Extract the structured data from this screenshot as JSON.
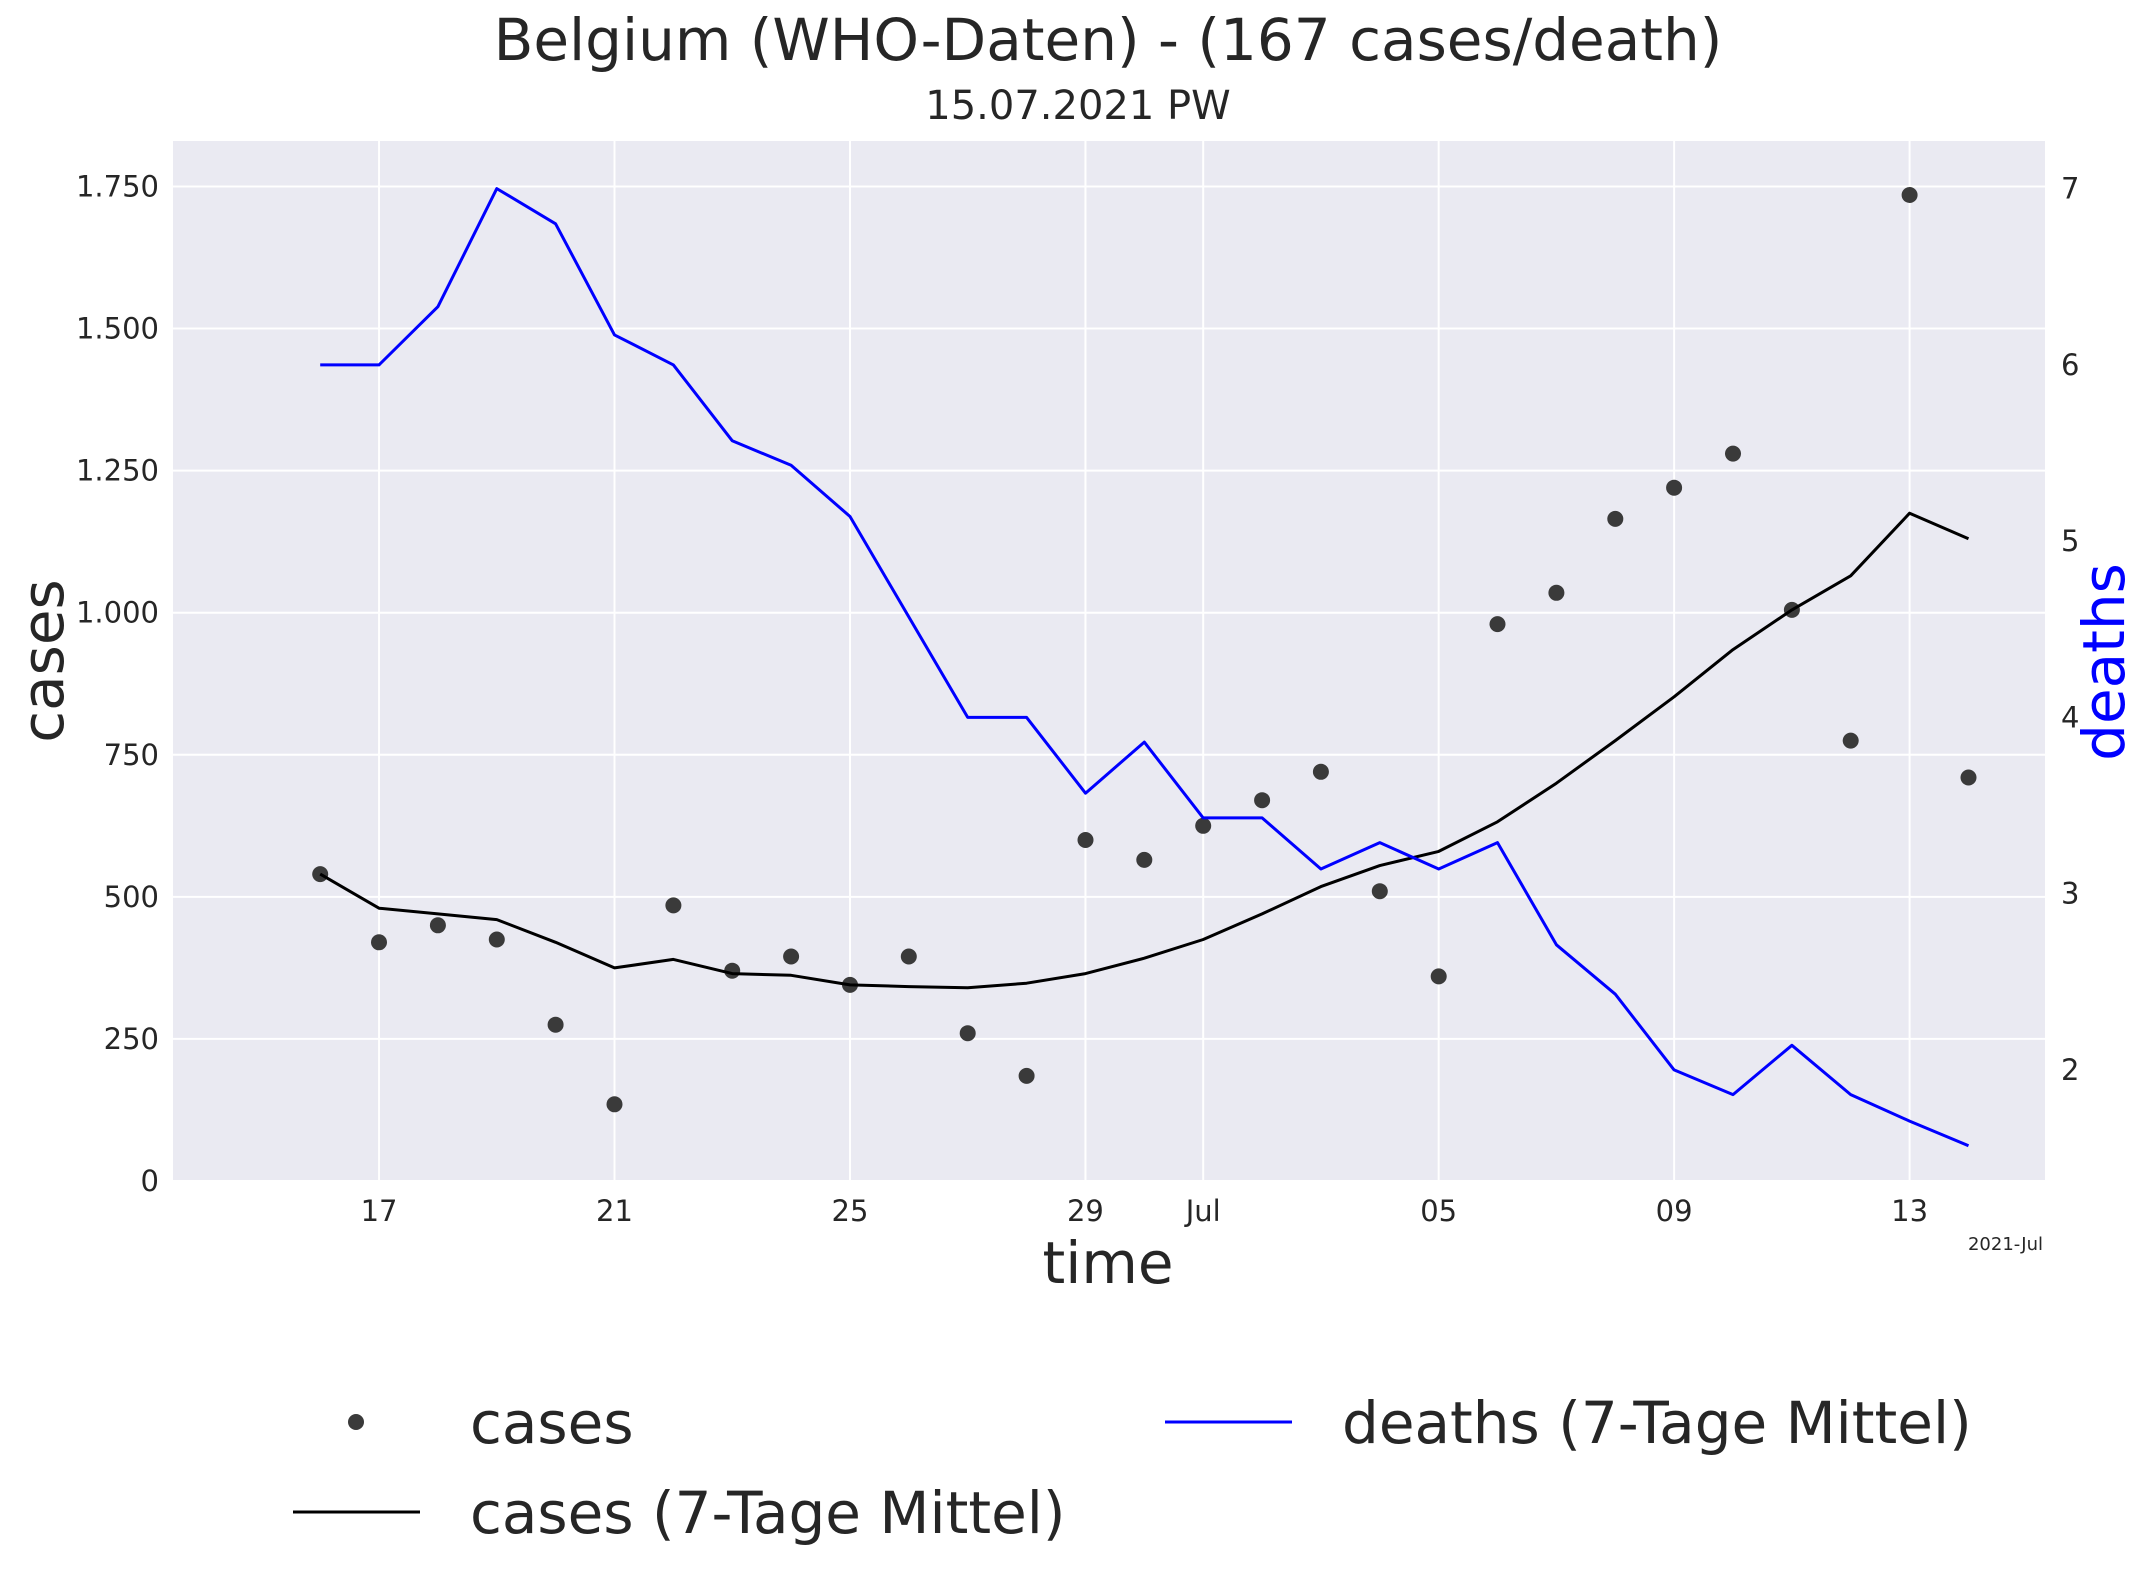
{
  "chart_data": {
    "type": "line",
    "title": "Belgium (WHO-Daten) - (167 cases/death)",
    "subtitle": "15.07.2021 PW",
    "xlabel": "time",
    "ylabel": "cases",
    "ylabel_right": "deaths",
    "x_offset_label": "2021-Jul",
    "x": [
      "2021-06-16",
      "2021-06-17",
      "2021-06-18",
      "2021-06-19",
      "2021-06-20",
      "2021-06-21",
      "2021-06-22",
      "2021-06-23",
      "2021-06-24",
      "2021-06-25",
      "2021-06-26",
      "2021-06-27",
      "2021-06-28",
      "2021-06-29",
      "2021-06-30",
      "2021-07-01",
      "2021-07-02",
      "2021-07-03",
      "2021-07-04",
      "2021-07-05",
      "2021-07-06",
      "2021-07-07",
      "2021-07-08",
      "2021-07-09",
      "2021-07-10",
      "2021-07-11",
      "2021-07-12",
      "2021-07-13",
      "2021-07-14"
    ],
    "xlim": [
      "2021-06-13.5",
      "2021-07-15.3"
    ],
    "x_ticks": [
      {
        "date": "2021-06-17",
        "label": "17"
      },
      {
        "date": "2021-06-21",
        "label": "21"
      },
      {
        "date": "2021-06-25",
        "label": "25"
      },
      {
        "date": "2021-06-29",
        "label": "29"
      },
      {
        "date": "2021-07-01",
        "label": "Jul"
      },
      {
        "date": "2021-07-05",
        "label": "05"
      },
      {
        "date": "2021-07-09",
        "label": "09"
      },
      {
        "date": "2021-07-13",
        "label": "13"
      }
    ],
    "ylim": [
      0,
      1830
    ],
    "y_ticks": [
      {
        "value": 0,
        "label": "0"
      },
      {
        "value": 250,
        "label": "250"
      },
      {
        "value": 500,
        "label": "500"
      },
      {
        "value": 750,
        "label": "750"
      },
      {
        "value": 1000,
        "label": "1.000"
      },
      {
        "value": 1250,
        "label": "1.250"
      },
      {
        "value": 1500,
        "label": "1.500"
      },
      {
        "value": 1750,
        "label": "1.750"
      }
    ],
    "ylim_right": [
      1.37,
      7.27
    ],
    "y_ticks_right": [
      {
        "value": 2,
        "label": "2"
      },
      {
        "value": 3,
        "label": "3"
      },
      {
        "value": 4,
        "label": "4"
      },
      {
        "value": 5,
        "label": "5"
      },
      {
        "value": 6,
        "label": "6"
      },
      {
        "value": 7,
        "label": "7"
      }
    ],
    "grid": true,
    "legend_position": "bottom",
    "series": [
      {
        "name": "cases",
        "kind": "scatter",
        "axis": "left",
        "color": "#3a3a3a",
        "values": [
          540,
          420,
          450,
          425,
          275,
          135,
          485,
          370,
          395,
          345,
          395,
          260,
          185,
          600,
          565,
          625,
          670,
          720,
          510,
          360,
          980,
          1035,
          1165,
          1220,
          1280,
          1005,
          775,
          1735,
          710
        ]
      },
      {
        "name": "cases (7-Tage Mittel)",
        "kind": "line",
        "axis": "left",
        "color": "#000000",
        "values": [
          540,
          480,
          470,
          460,
          420,
          375,
          390,
          365,
          362,
          345,
          342,
          340,
          348,
          365,
          392,
          425,
          470,
          518,
          555,
          580,
          632,
          700,
          775,
          852,
          935,
          1005,
          1065,
          1175,
          1130
        ]
      },
      {
        "name": "deaths (7-Tage Mittel)",
        "kind": "line",
        "axis": "right",
        "color": "#0000ff",
        "values": [
          6.0,
          6.0,
          6.33,
          7.0,
          6.8,
          6.17,
          6.0,
          5.57,
          5.43,
          5.14,
          4.57,
          4.0,
          4.0,
          3.57,
          3.86,
          3.43,
          3.43,
          3.14,
          3.29,
          3.14,
          3.29,
          2.71,
          2.43,
          2.0,
          1.86,
          2.14,
          1.86,
          1.71,
          1.57
        ]
      }
    ]
  }
}
